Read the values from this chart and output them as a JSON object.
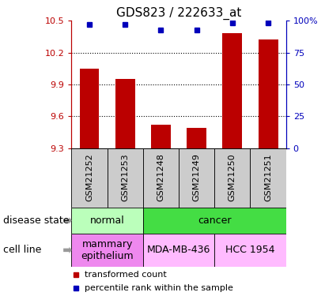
{
  "title": "GDS823 / 222633_at",
  "samples": [
    "GSM21252",
    "GSM21253",
    "GSM21248",
    "GSM21249",
    "GSM21250",
    "GSM21251"
  ],
  "bar_values": [
    10.05,
    9.95,
    9.52,
    9.49,
    10.38,
    10.32
  ],
  "percentile_values": [
    97,
    97,
    93,
    93,
    98,
    98
  ],
  "ylim_left": [
    9.3,
    10.5
  ],
  "ylim_right": [
    0,
    100
  ],
  "left_yticks": [
    9.3,
    9.6,
    9.9,
    10.2,
    10.5
  ],
  "right_yticks": [
    0,
    25,
    50,
    75,
    100
  ],
  "right_yticklabels": [
    "0",
    "25",
    "50",
    "75",
    "100%"
  ],
  "bar_color": "#bb0000",
  "square_color": "#0000bb",
  "bar_bottom": 9.3,
  "dotted_levels": [
    9.6,
    9.9,
    10.2
  ],
  "disease_state_groups": [
    {
      "label": "normal",
      "start": 0,
      "end": 2,
      "color": "#bbffbb"
    },
    {
      "label": "cancer",
      "start": 2,
      "end": 6,
      "color": "#44dd44"
    }
  ],
  "cell_line_groups": [
    {
      "label": "mammary\nepithelium",
      "start": 0,
      "end": 2,
      "color": "#ee88ee"
    },
    {
      "label": "MDA-MB-436",
      "start": 2,
      "end": 4,
      "color": "#ffbbff"
    },
    {
      "label": "HCC 1954",
      "start": 4,
      "end": 6,
      "color": "#ffbbff"
    }
  ],
  "disease_state_label": "disease state",
  "cell_line_label": "cell line",
  "legend_items": [
    {
      "color": "#bb0000",
      "label": "transformed count"
    },
    {
      "color": "#0000bb",
      "label": "percentile rank within the sample"
    }
  ],
  "title_fontsize": 11,
  "tick_fontsize": 8,
  "label_fontsize": 9,
  "sample_label_fontsize": 8,
  "annotation_fontsize": 9,
  "legend_fontsize": 8,
  "bar_gray": "#cccccc"
}
